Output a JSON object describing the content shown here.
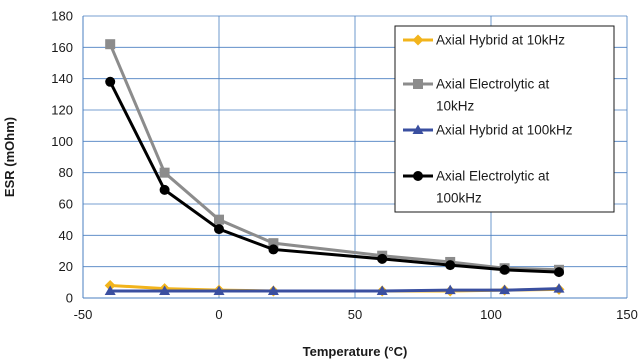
{
  "chart_data": {
    "type": "line",
    "xlabel": "Temperature (°C)",
    "ylabel": "ESR (mOhm)",
    "xlim": [
      -50,
      150
    ],
    "ylim": [
      0,
      180
    ],
    "xticks": [
      -50,
      0,
      50,
      100,
      150
    ],
    "yticks": [
      0,
      20,
      40,
      60,
      80,
      100,
      120,
      140,
      160,
      180
    ],
    "x": [
      -40,
      -20,
      0,
      20,
      60,
      85,
      105,
      125
    ],
    "grid": "both",
    "legend_placement": "top-right",
    "series": [
      {
        "name": "Axial Hybrid at 10kHz",
        "legend_lines": [
          "Axial Hybrid at 10kHz"
        ],
        "marker": "diamond",
        "color": "#f2b41c",
        "values": [
          8,
          6,
          5,
          4.5,
          4.5,
          4.5,
          5,
          5.5
        ]
      },
      {
        "name": "Axial Electrolytic at 10kHz",
        "legend_lines": [
          "Axial Electrolytic at",
          "10kHz"
        ],
        "marker": "square",
        "color": "#8c8c8c",
        "values": [
          162,
          80,
          50,
          35,
          27,
          23,
          19,
          18
        ]
      },
      {
        "name": "Axial Hybrid at 100kHz",
        "legend_lines": [
          "Axial Hybrid at 100kHz"
        ],
        "marker": "triangle",
        "color": "#3a4fa0",
        "values": [
          4.5,
          4.5,
          4.5,
          4.5,
          4.5,
          5,
          5,
          6
        ]
      },
      {
        "name": "Axial Electrolytic at 100kHz",
        "legend_lines": [
          "Axial Electrolytic at",
          "100kHz"
        ],
        "marker": "circle",
        "color": "#000000",
        "values": [
          138,
          69,
          44,
          31,
          25,
          21,
          18,
          16.5
        ]
      }
    ]
  }
}
